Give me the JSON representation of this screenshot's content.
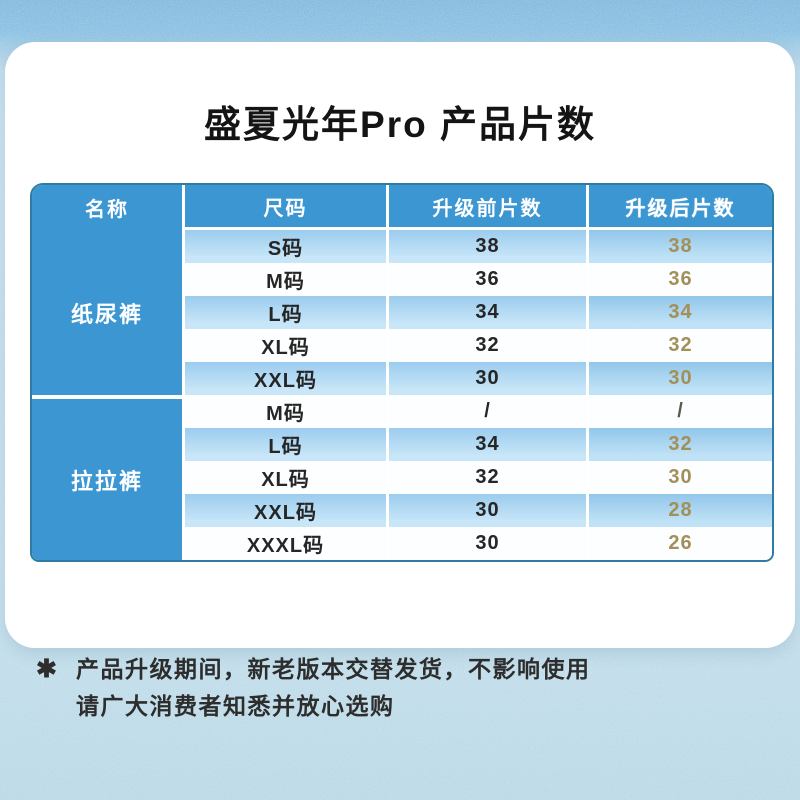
{
  "page": {
    "title": "盛夏光年Pro 产品片数"
  },
  "table": {
    "headers": [
      "名称",
      "尺码",
      "升级前片数",
      "升级后片数"
    ],
    "groups": [
      {
        "name": "纸尿裤",
        "rows": [
          {
            "size": "S码",
            "before": "38",
            "after": "38"
          },
          {
            "size": "M码",
            "before": "36",
            "after": "36"
          },
          {
            "size": "L码",
            "before": "34",
            "after": "34"
          },
          {
            "size": "XL码",
            "before": "32",
            "after": "32"
          },
          {
            "size": "XXL码",
            "before": "30",
            "after": "30"
          }
        ]
      },
      {
        "name": "拉拉裤",
        "rows": [
          {
            "size": "M码",
            "before": "/",
            "after": "/"
          },
          {
            "size": "L码",
            "before": "34",
            "after": "32"
          },
          {
            "size": "XL码",
            "before": "32",
            "after": "30"
          },
          {
            "size": "XXL码",
            "before": "30",
            "after": "28"
          },
          {
            "size": "XXXL码",
            "before": "30",
            "after": "26"
          }
        ]
      }
    ]
  },
  "footnote": {
    "marker": "✱",
    "line1": "产品升级期间，新老版本交替发货，不影响使用",
    "line2": "请广大消费者知悉并放心选购"
  },
  "colors": {
    "header_blue": "#3b96d2",
    "stripe_blue": "#aed7f2",
    "after_value_gold": "#a38f58",
    "table_border": "#2e7ca4",
    "background_blue": "#b4d6e8"
  }
}
